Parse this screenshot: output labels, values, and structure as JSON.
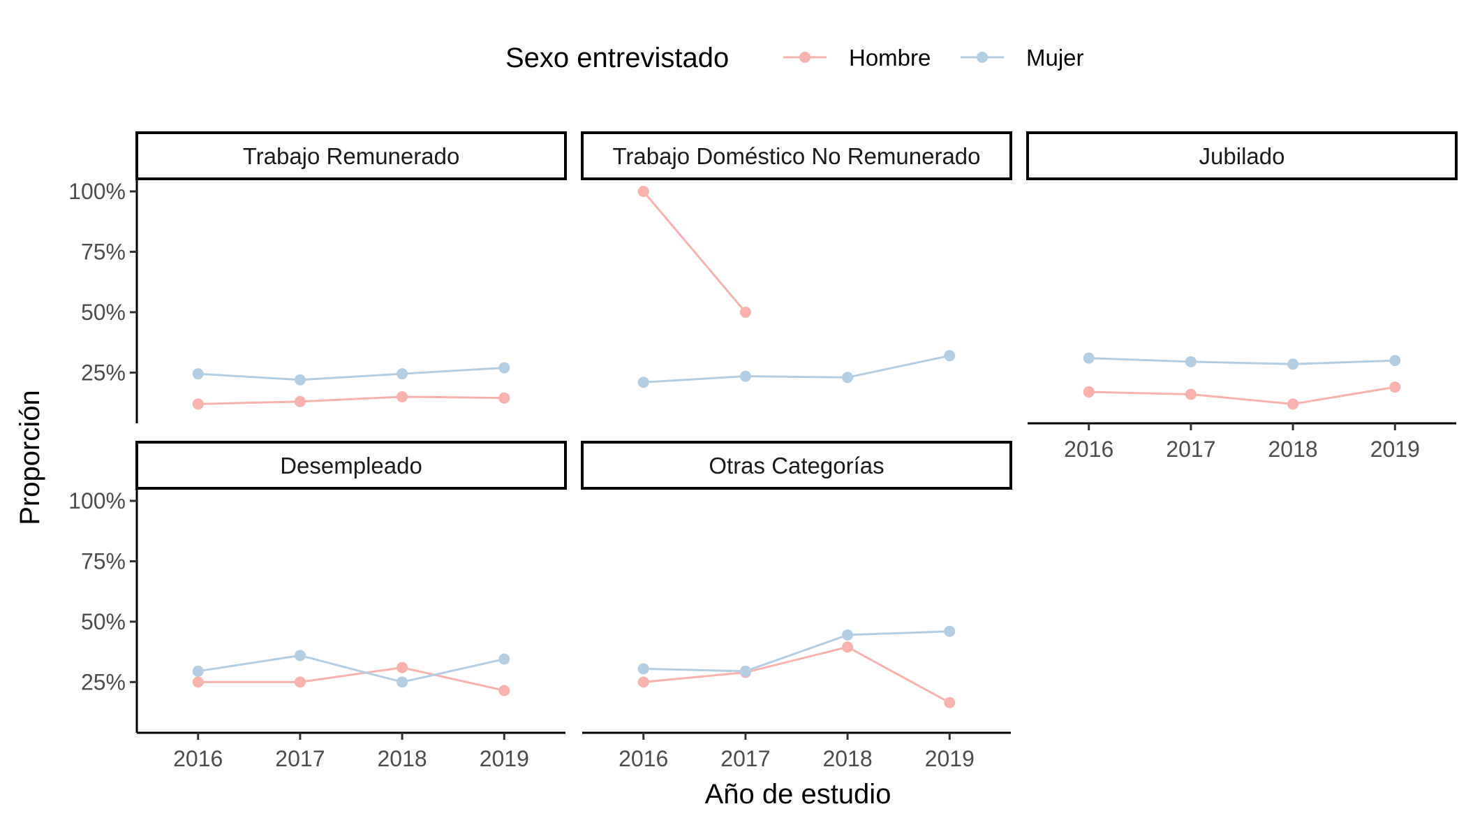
{
  "legend": {
    "title": "Sexo entrevistado",
    "items": [
      {
        "label": "Hombre",
        "color": "#F8B1AC"
      },
      {
        "label": "Mujer",
        "color": "#B3CDE3"
      }
    ]
  },
  "axes": {
    "xlabel": "Año de estudio",
    "ylabel": "Proporción"
  },
  "chart_data": {
    "type": "line",
    "facet_layout": "3 columns, 2 rows, shared axes",
    "x": [
      2016,
      2017,
      2018,
      2019
    ],
    "x_tick_labels": [
      "2016",
      "2017",
      "2018",
      "2019"
    ],
    "y_tick_labels": [
      "25%",
      "50%",
      "75%",
      "100%"
    ],
    "y_ticks": [
      0.25,
      0.5,
      0.75,
      1.0
    ],
    "ylim": [
      0.04,
      1.0
    ],
    "xlim": [
      2015.4,
      2019.6
    ],
    "grid": false,
    "legend_position": "top",
    "panels": [
      {
        "title": "Trabajo Remunerado",
        "series": [
          {
            "name": "Hombre",
            "color": "#F8B1AC",
            "values": [
              0.12,
              0.13,
              0.15,
              0.145
            ]
          },
          {
            "name": "Mujer",
            "color": "#B3CDE3",
            "values": [
              0.245,
              0.22,
              0.245,
              0.27
            ]
          }
        ]
      },
      {
        "title": "Trabajo Doméstico No Remunerado",
        "series": [
          {
            "name": "Hombre",
            "color": "#F8B1AC",
            "values": [
              1.0,
              0.5,
              null,
              null
            ]
          },
          {
            "name": "Mujer",
            "color": "#B3CDE3",
            "values": [
              0.21,
              0.235,
              0.23,
              0.32
            ]
          }
        ]
      },
      {
        "title": "Jubilado",
        "series": [
          {
            "name": "Hombre",
            "color": "#F8B1AC",
            "values": [
              0.17,
              0.16,
              0.12,
              0.19
            ]
          },
          {
            "name": "Mujer",
            "color": "#B3CDE3",
            "values": [
              0.31,
              0.295,
              0.285,
              0.3
            ]
          }
        ]
      },
      {
        "title": "Desempleado",
        "series": [
          {
            "name": "Hombre",
            "color": "#F8B1AC",
            "values": [
              0.25,
              0.25,
              0.31,
              0.215
            ]
          },
          {
            "name": "Mujer",
            "color": "#B3CDE3",
            "values": [
              0.295,
              0.36,
              0.25,
              0.345
            ]
          }
        ]
      },
      {
        "title": "Otras Categorías",
        "series": [
          {
            "name": "Hombre",
            "color": "#F8B1AC",
            "values": [
              0.25,
              0.29,
              0.395,
              0.165
            ]
          },
          {
            "name": "Mujer",
            "color": "#B3CDE3",
            "values": [
              0.305,
              0.295,
              0.445,
              0.46
            ]
          }
        ]
      }
    ]
  }
}
